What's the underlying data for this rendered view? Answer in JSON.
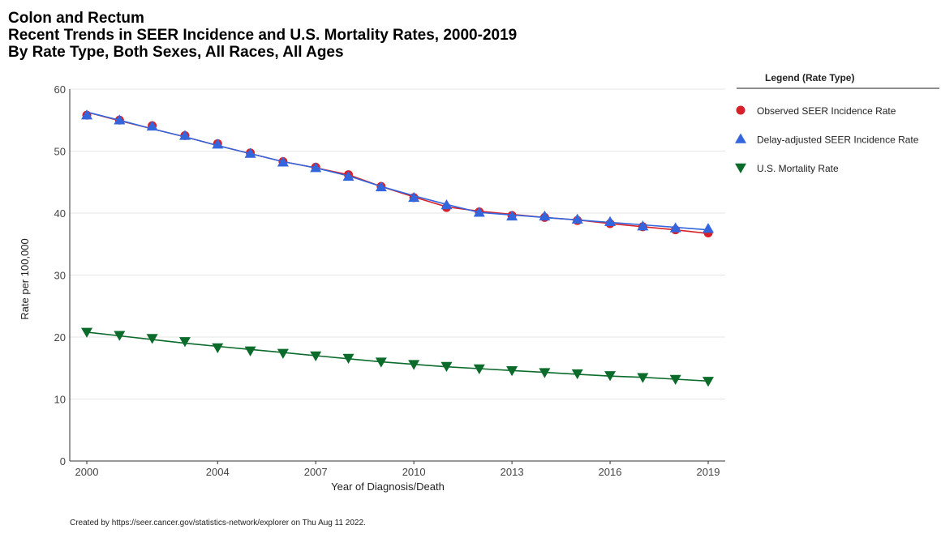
{
  "title_lines": [
    "Colon and Rectum",
    "Recent Trends in SEER Incidence and U.S. Mortality Rates, 2000-2019",
    "By Rate Type, Both Sexes, All Races, All Ages"
  ],
  "footer": "Created by https://seer.cancer.gov/statistics-network/explorer on Thu Aug 11 2022.",
  "chart_data": {
    "type": "line",
    "title": "Colon and Rectum",
    "xlabel": "Year of Diagnosis/Death",
    "ylabel": "Rate per 100,000",
    "x": [
      2000,
      2001,
      2002,
      2003,
      2004,
      2005,
      2006,
      2007,
      2008,
      2009,
      2010,
      2011,
      2012,
      2013,
      2014,
      2015,
      2016,
      2017,
      2018,
      2019
    ],
    "xlim": [
      2000,
      2019
    ],
    "ylim": [
      0,
      60
    ],
    "x_ticks": [
      2000,
      2004,
      2007,
      2010,
      2013,
      2016,
      2019
    ],
    "y_ticks": [
      0,
      10,
      20,
      30,
      40,
      50,
      60
    ],
    "grid": true,
    "legend_title": "Legend (Rate Type)",
    "legend_position": "right",
    "series": [
      {
        "name": "Observed SEER Incidence Rate",
        "marker": "circle",
        "color": "#d6212a",
        "points": [
          55.8,
          55.0,
          54.1,
          52.5,
          51.2,
          49.7,
          48.3,
          47.4,
          46.2,
          44.3,
          42.5,
          40.9,
          40.2,
          39.6,
          39.3,
          38.8,
          38.3,
          37.8,
          37.3,
          36.8
        ],
        "fit": [
          56.3,
          54.9,
          53.6,
          52.3,
          50.9,
          49.6,
          48.3,
          47.3,
          46.2,
          44.3,
          42.6,
          41.0,
          40.3,
          39.8,
          39.3,
          38.9,
          38.3,
          37.8,
          37.3,
          36.7
        ]
      },
      {
        "name": "Delay-adjusted SEER Incidence Rate",
        "marker": "triangle-up",
        "color": "#3366dd",
        "points": [
          55.8,
          55.0,
          54.0,
          52.5,
          51.1,
          49.6,
          48.2,
          47.3,
          45.9,
          44.2,
          42.5,
          41.3,
          40.1,
          39.5,
          39.5,
          39.0,
          38.6,
          37.9,
          37.6,
          37.5
        ],
        "fit": [
          56.3,
          55.0,
          53.6,
          52.3,
          50.9,
          49.6,
          48.3,
          47.3,
          46.0,
          44.3,
          42.8,
          41.4,
          40.1,
          39.7,
          39.3,
          38.9,
          38.5,
          38.1,
          37.7,
          37.3
        ]
      },
      {
        "name": "U.S. Mortality Rate",
        "marker": "triangle-down",
        "color": "#0b6b2b",
        "points": [
          20.8,
          20.3,
          19.8,
          19.3,
          18.3,
          17.8,
          17.4,
          17.0,
          16.6,
          16.0,
          15.6,
          15.3,
          14.9,
          14.6,
          14.3,
          14.1,
          13.8,
          13.5,
          13.2,
          12.9
        ],
        "fit": [
          20.8,
          20.2,
          19.6,
          19.0,
          18.5,
          18.0,
          17.5,
          17.0,
          16.5,
          16.0,
          15.6,
          15.2,
          14.9,
          14.6,
          14.3,
          14.0,
          13.7,
          13.5,
          13.2,
          12.9
        ]
      }
    ]
  }
}
